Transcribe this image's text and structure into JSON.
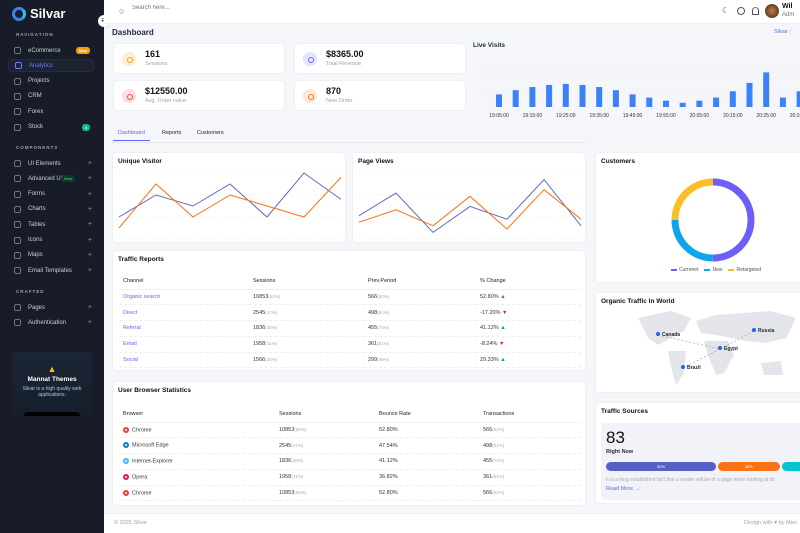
{
  "sidebar": {
    "brand": "Silvar",
    "sections": [
      "NAVIGATION",
      "COMPONENTS",
      "CRAFTED"
    ],
    "nav": [
      {
        "label": "eCommerce",
        "badge": "New"
      },
      {
        "label": "Analytics",
        "active": true
      },
      {
        "label": "Projects"
      },
      {
        "label": "CRM"
      },
      {
        "label": "Forex"
      },
      {
        "label": "Stock",
        "badge": "4"
      }
    ],
    "components": [
      {
        "label": "UI Elements"
      },
      {
        "label": "Advanced UI",
        "badge": "New"
      },
      {
        "label": "Forms"
      },
      {
        "label": "Charts"
      },
      {
        "label": "Tables"
      },
      {
        "label": "Icons"
      },
      {
        "label": "Maps"
      },
      {
        "label": "Email Templates"
      }
    ],
    "crafted": [
      {
        "label": "Pages"
      },
      {
        "label": "Authentication"
      }
    ],
    "plus": "+",
    "promo": {
      "title": "Mannat Themes",
      "text": "Silvar is a high quality web applications."
    }
  },
  "header": {
    "search_placeholder": "Search here...",
    "user_name": "Wil",
    "user_role": "Adm",
    "icons": [
      "moon-icon",
      "chat-icon",
      "bell-icon"
    ]
  },
  "page": {
    "title": "Dashboard",
    "breadcrumb": "Silvar",
    "breadcrumb_sep": "/"
  },
  "stats": [
    {
      "value": "161",
      "label": "Sessions",
      "color": "#f59e0b"
    },
    {
      "value": "$8365.00",
      "label": "Total Revenue",
      "color": "#6366f1"
    },
    {
      "value": "$12550.00",
      "label": "Avg. Order value",
      "color": "#ef4444"
    },
    {
      "value": "870",
      "label": "New Order",
      "color": "#f97316"
    }
  ],
  "tabs": [
    "Dashboard",
    "Reports",
    "Customers"
  ],
  "chart_data": [
    {
      "type": "bar",
      "title": "Live Visits",
      "categories": [
        "19:05:00",
        "19:10:00",
        "19:15:00",
        "19:20:00",
        "19:25:00",
        "19:30:00",
        "19:35:00",
        "19:40:00",
        "19:45:00",
        "19:50:00",
        "19:55:00",
        "20:00:00",
        "20:05:00",
        "20:10:00",
        "20:15:00",
        "20:20:00",
        "20:25:00",
        "20:30:00",
        "20:35:00"
      ],
      "tick_labels": [
        "19:05:00",
        "19:15:00",
        "19:25:00",
        "19:35:00",
        "19:45:00",
        "19:55:00",
        "20:05:00",
        "20:15:00",
        "20:25:00",
        "20:35:00"
      ],
      "values": [
        12,
        16,
        19,
        21,
        22,
        21,
        19,
        16,
        12,
        9,
        6,
        4,
        6,
        9,
        15,
        23,
        33,
        9,
        15
      ],
      "color": "#3b82f6",
      "grid": true
    },
    {
      "type": "line",
      "title": "Unique Visitor",
      "x": [
        1,
        2,
        3,
        4,
        5,
        6,
        7
      ],
      "series": [
        {
          "values": [
            1,
            2,
            1.5,
            2.5,
            1,
            3,
            1.8
          ],
          "color": "#5c6bc0"
        },
        {
          "values": [
            0.5,
            2.5,
            1,
            2,
            1.5,
            1,
            2.8
          ],
          "color": "#f97316"
        }
      ],
      "ylim": [
        0,
        3
      ],
      "grid": true
    },
    {
      "type": "line",
      "title": "Page Views",
      "x": [
        1,
        2,
        3,
        4,
        5,
        6,
        7
      ],
      "series": [
        {
          "values": [
            1.06,
            2.09,
            0.3,
            1.48,
            0.9,
            2.7,
            0.6
          ],
          "color": "#5c6bc0"
        },
        {
          "values": [
            0.76,
            1.33,
            0.6,
            1.94,
            0.45,
            2.24,
            0.9
          ],
          "color": "#f97316"
        }
      ],
      "ylim": [
        0,
        3
      ],
      "grid": true
    },
    {
      "type": "pie",
      "title": "Customers",
      "donut": true,
      "series": [
        {
          "name": "Currenet",
          "value": 50,
          "color": "#6d5ef7"
        },
        {
          "name": "New",
          "value": 25,
          "color": "#0ea5e9"
        },
        {
          "name": "Retargeted",
          "value": 25,
          "color": "#fbbf24"
        }
      ],
      "legend": "bottom"
    }
  ],
  "traffic_reports": {
    "title": "Traffic Reports",
    "headers": [
      "Channel",
      "Sessions",
      "Prev.Period",
      "% Change"
    ],
    "rows": [
      [
        "Organic search",
        "10853",
        "(52%)",
        "566",
        "(92%)",
        "52.80%",
        "up"
      ],
      [
        "Direct",
        "2545",
        "(47%)",
        "498",
        "(81%)",
        "-17.20%",
        "down"
      ],
      [
        "Referal",
        "1836",
        "(38%)",
        "455",
        "(74%)",
        "41.12%",
        "up"
      ],
      [
        "Email",
        "1958",
        "(31%)",
        "361",
        "(61%)",
        "-8.24%",
        "down"
      ],
      [
        "Social",
        "1566",
        "(26%)",
        "299",
        "(49%)",
        "29.33%",
        "up"
      ]
    ]
  },
  "browser_stats": {
    "title": "User Browser Statistics",
    "headers": [
      "Browser",
      "Sessions",
      "Bounce Rate",
      "Transactions"
    ],
    "rows": [
      [
        "Chrome",
        "10853",
        "(52%)",
        "52.80%",
        "566",
        "(92%)",
        "#ea4335"
      ],
      [
        "Microsoft Edge",
        "2545",
        "(47%)",
        "47.54%",
        "498",
        "(81%)",
        "#0c7cd5"
      ],
      [
        "Internet-Explorer",
        "1836",
        "(38%)",
        "41.12%",
        "455",
        "(74%)",
        "#38bdf8"
      ],
      [
        "Opera",
        "1958",
        "(31%)",
        "36.82%",
        "361",
        "(61%)",
        "#e11d48"
      ],
      [
        "Chrome",
        "10853",
        "(52%)",
        "52.80%",
        "566",
        "(92%)",
        "#ea4335"
      ]
    ]
  },
  "world": {
    "title": "Organic Traffic In World",
    "markers": [
      "Canada",
      "Russia",
      "Egypt",
      "Brazil"
    ]
  },
  "traffic_sources": {
    "title": "Traffic Sources",
    "value": "83",
    "label": "Right Now",
    "bars": [
      {
        "label": "50%",
        "value": 50,
        "color": "#5660c4"
      },
      {
        "label": "28%",
        "value": 28,
        "color": "#f97316"
      },
      {
        "label": "22%",
        "value": 22,
        "color": "#06c3d1"
      }
    ],
    "text": "It is a long established fact that a reader will be of a page when looking at its",
    "read_more": "Read More →"
  },
  "footer": {
    "copyright": "© 2025 Silvar",
    "credit": "Design with ♥ by Man"
  }
}
